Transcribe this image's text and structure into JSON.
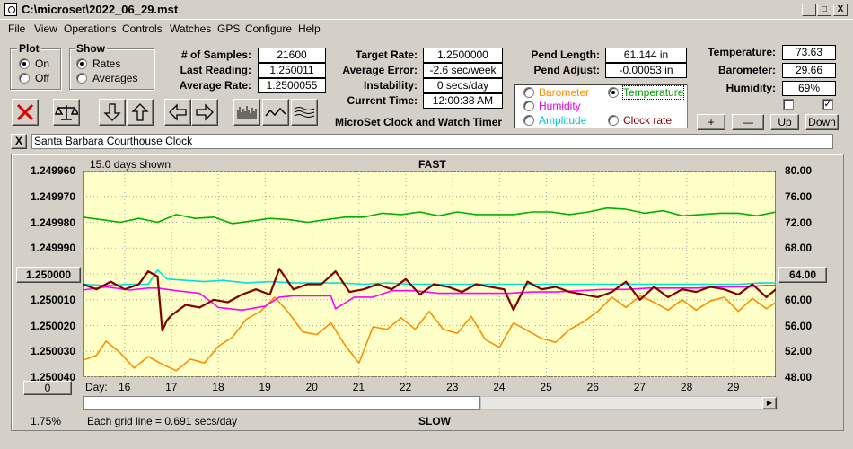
{
  "window": {
    "title": "C:\\microset\\2022_06_29.mst",
    "min": "_",
    "max": "□",
    "close": "X"
  },
  "menu": [
    "File",
    "View",
    "Operations",
    "Controls",
    "Watches",
    "GPS",
    "Configure",
    "Help"
  ],
  "plot_group": {
    "title": "Plot",
    "on": "On",
    "off": "Off",
    "selected": "on"
  },
  "show_group": {
    "title": "Show",
    "rates": "Rates",
    "averages": "Averages",
    "selected": "rates"
  },
  "stats": {
    "samples_label": "# of Samples:",
    "samples": "21600",
    "last_label": "Last Reading:",
    "last": "1.250011",
    "avg_label": "Average Rate:",
    "avg": "1.2500055",
    "target_label": "Target Rate:",
    "target": "1.2500000",
    "avg_err_label": "Average Error:",
    "avg_err": "-2.6 sec/week",
    "instab_label": "Instability:",
    "instab": "0 secs/day",
    "time_label": "Current Time:",
    "time": "12:00:38 AM",
    "app_name": "MicroSet Clock and Watch Timer",
    "pend_len_label": "Pend Length:",
    "pend_len": "61.144 in",
    "pend_adj_label": "Pend Adjust:",
    "pend_adj": "-0.00053 in",
    "temp_label": "Temperature:",
    "temp": "73.63",
    "baro_label": "Barometer:",
    "baro": "29.66",
    "hum_label": "Humidity:",
    "hum": "69%"
  },
  "series_select": {
    "barometer": "Barometer",
    "temperature": "Temperature",
    "humidity": "Humidity",
    "amplitude": "Amplitude",
    "clock_rate": "Clock rate",
    "selected": "temperature"
  },
  "adj_buttons": {
    "plus": "+",
    "minus": "—",
    "up": "Up",
    "down": "Down"
  },
  "clock_name": "Santa Barbara Courthouse Clock",
  "clear_label": "X",
  "colors": {
    "plot_bg": "#ffffc8",
    "rate": "#800000",
    "temperature": "#00b000",
    "barometer": "#ff8c00",
    "humidity": "#ff00ff",
    "amplitude": "#00e0e0"
  },
  "chart_data": {
    "type": "line",
    "days_shown": "15.0 days shown",
    "top_label": "FAST",
    "bottom_label": "SLOW",
    "grid_note": "Each grid line = 0.691 secs/day",
    "left_ticks": [
      "1.249960",
      "1.249970",
      "1.249980",
      "1.249990",
      "1.250000",
      "1.250010",
      "1.250020",
      "1.250030",
      "1.250040"
    ],
    "left_center": "1.250000",
    "right_ticks": [
      "80.00",
      "76.00",
      "72.00",
      "68.00",
      "64.00",
      "60.00",
      "56.00",
      "52.00",
      "48.00"
    ],
    "right_center": "64.00",
    "xlabel": "Day:",
    "x_ticks": [
      "16",
      "17",
      "18",
      "19",
      "20",
      "21",
      "22",
      "23",
      "24",
      "25",
      "26",
      "27",
      "28",
      "29"
    ],
    "xlim": [
      15.1,
      29.9
    ],
    "left_ylim": [
      1.24996,
      1.25004
    ],
    "right_ylim": [
      48,
      80
    ],
    "bottom_left_btn": "0",
    "percent": "1.75%",
    "series": [
      {
        "key": "temperature",
        "axis": "right",
        "x": [
          15.1,
          15.5,
          15.9,
          16.3,
          16.7,
          17.1,
          17.5,
          17.9,
          18.3,
          18.7,
          19.1,
          19.5,
          19.9,
          20.3,
          20.7,
          21.1,
          21.5,
          21.9,
          22.3,
          22.7,
          23.1,
          23.5,
          23.9,
          24.3,
          24.7,
          25.1,
          25.5,
          25.9,
          26.3,
          26.7,
          27.1,
          27.5,
          27.9,
          28.3,
          28.7,
          29.1,
          29.5,
          29.9
        ],
        "y": [
          72.8,
          72.4,
          72.0,
          72.6,
          72.0,
          73.2,
          72.6,
          72.8,
          71.8,
          72.2,
          72.6,
          72.4,
          72.0,
          72.4,
          72.8,
          72.8,
          73.4,
          73.2,
          73.6,
          73.0,
          73.6,
          73.2,
          73.2,
          73.2,
          73.6,
          73.6,
          73.2,
          73.6,
          74.2,
          74.0,
          73.4,
          73.8,
          73.0,
          73.2,
          73.4,
          73.4,
          73.0,
          73.6
        ]
      },
      {
        "key": "barometer",
        "axis": "right",
        "x": [
          15.1,
          15.4,
          15.6,
          15.9,
          16.2,
          16.5,
          16.8,
          17.1,
          17.4,
          17.7,
          18.0,
          18.3,
          18.6,
          18.9,
          19.2,
          19.5,
          19.8,
          20.1,
          20.4,
          20.7,
          21.0,
          21.3,
          21.6,
          21.9,
          22.2,
          22.5,
          22.8,
          23.1,
          23.4,
          23.7,
          24.0,
          24.3,
          24.6,
          24.9,
          25.2,
          25.5,
          25.8,
          26.1,
          26.4,
          26.7,
          27.0,
          27.3,
          27.6,
          27.9,
          28.2,
          28.5,
          28.8,
          29.1,
          29.4,
          29.7,
          29.9
        ],
        "y": [
          50.6,
          51.4,
          53.6,
          51.8,
          49.4,
          51.2,
          50.0,
          49.0,
          50.8,
          50.2,
          52.8,
          54.2,
          57.0,
          58.2,
          60.4,
          58.0,
          55.0,
          54.6,
          56.4,
          53.0,
          50.2,
          55.8,
          55.4,
          57.2,
          55.4,
          58.2,
          55.4,
          54.8,
          57.4,
          53.8,
          52.6,
          56.4,
          55.2,
          54.0,
          53.4,
          55.4,
          56.6,
          58.2,
          60.4,
          58.8,
          60.6,
          59.6,
          58.4,
          60.0,
          58.4,
          59.8,
          60.4,
          58.2,
          60.2,
          58.6,
          59.6
        ]
      },
      {
        "key": "humidity",
        "axis": "right",
        "x": [
          15.1,
          15.6,
          16.1,
          16.5,
          16.7,
          17.1,
          17.6,
          18.0,
          18.5,
          19.0,
          19.3,
          19.6,
          20.0,
          20.4,
          20.5,
          20.9,
          21.3,
          21.7,
          22.2,
          22.7,
          23.2,
          23.7,
          24.2,
          24.7,
          25.2,
          25.7,
          26.2,
          26.7,
          27.2,
          27.7,
          28.2,
          28.7,
          29.2,
          29.7,
          29.9
        ],
        "y": [
          61.5,
          62.0,
          61.5,
          61.8,
          61.8,
          61.4,
          61.0,
          58.8,
          58.4,
          59.0,
          60.4,
          60.6,
          60.6,
          60.6,
          58.6,
          60.4,
          60.4,
          61.4,
          61.4,
          61.0,
          61.0,
          61.0,
          61.0,
          61.2,
          61.2,
          61.4,
          61.6,
          61.6,
          61.8,
          61.8,
          61.8,
          62.0,
          62.0,
          62.2,
          62.2
        ]
      },
      {
        "key": "amplitude",
        "axis": "right",
        "x": [
          15.1,
          15.6,
          16.1,
          16.5,
          16.7,
          16.9,
          17.3,
          17.7,
          18.1,
          18.6,
          19.1,
          19.6,
          20.1,
          20.6,
          21.1,
          21.6,
          22.1,
          22.6,
          23.1,
          23.6,
          24.1,
          24.6,
          25.1,
          25.6,
          26.1,
          26.6,
          27.1,
          27.6,
          28.1,
          28.6,
          29.1,
          29.6,
          29.9
        ],
        "y": [
          62.4,
          62.2,
          62.4,
          62.4,
          64.6,
          63.2,
          63.0,
          62.8,
          63.0,
          62.6,
          62.8,
          62.6,
          62.6,
          62.6,
          62.4,
          62.6,
          62.4,
          62.4,
          62.4,
          62.4,
          62.4,
          62.4,
          62.4,
          62.4,
          62.4,
          62.4,
          62.4,
          62.4,
          62.4,
          62.4,
          62.4,
          62.6,
          62.6
        ]
      },
      {
        "key": "rate",
        "axis": "left",
        "x": [
          15.1,
          15.4,
          15.7,
          16.0,
          16.3,
          16.5,
          16.7,
          16.8,
          16.9,
          17.0,
          17.3,
          17.6,
          17.9,
          18.2,
          18.5,
          18.8,
          19.1,
          19.3,
          19.6,
          19.9,
          20.2,
          20.5,
          20.8,
          21.1,
          21.4,
          21.7,
          22.0,
          22.3,
          22.6,
          22.9,
          23.2,
          23.5,
          23.8,
          24.1,
          24.3,
          24.6,
          24.9,
          25.2,
          25.5,
          25.8,
          26.1,
          26.4,
          26.7,
          27.0,
          27.3,
          27.6,
          27.9,
          28.2,
          28.5,
          28.8,
          29.1,
          29.4,
          29.7,
          29.9
        ],
        "y": [
          1.250004,
          1.250006,
          1.250003,
          1.250006,
          1.250004,
          1.249999,
          1.250001,
          1.250022,
          1.250018,
          1.250016,
          1.250012,
          1.250013,
          1.25001,
          1.250011,
          1.250008,
          1.250006,
          1.250008,
          1.249998,
          1.250006,
          1.250004,
          1.250004,
          1.249999,
          1.250007,
          1.250006,
          1.250004,
          1.250006,
          1.250002,
          1.250008,
          1.250004,
          1.250005,
          1.250007,
          1.250004,
          1.250005,
          1.250006,
          1.250014,
          1.250003,
          1.250006,
          1.250005,
          1.250007,
          1.250008,
          1.250009,
          1.250007,
          1.250003,
          1.25001,
          1.250005,
          1.250009,
          1.250006,
          1.250007,
          1.250005,
          1.250006,
          1.250008,
          1.250004,
          1.250009,
          1.250006
        ]
      }
    ]
  }
}
